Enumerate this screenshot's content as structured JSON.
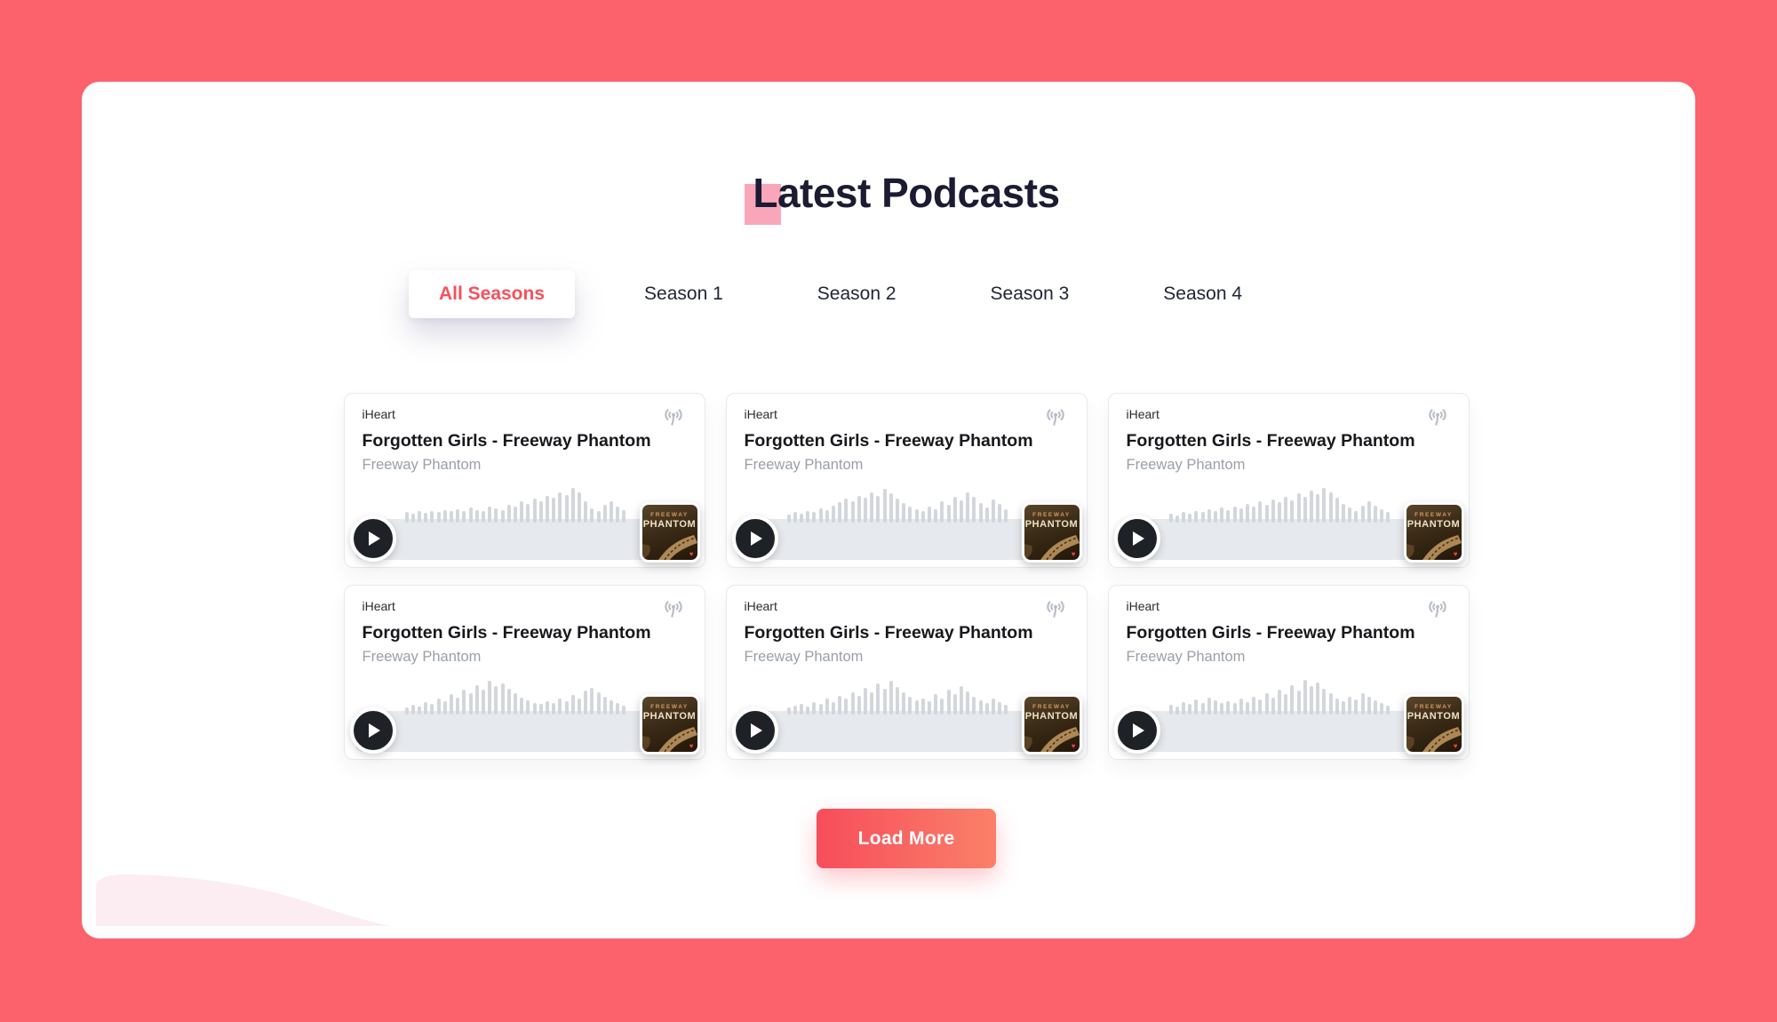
{
  "header": {
    "title": "Latest Podcasts"
  },
  "tabs": {
    "active_index": 0,
    "items": [
      {
        "label": "All Seasons"
      },
      {
        "label": "Season 1"
      },
      {
        "label": "Season 2"
      },
      {
        "label": "Season 3"
      },
      {
        "label": "Season 4"
      }
    ]
  },
  "cards": [
    {
      "network": "iHeart",
      "title": "Forgotten Girls - Freeway Phantom",
      "show": "Freeway Phantom",
      "art": {
        "line1": "FREEWAY",
        "line2": "PHANTOM"
      },
      "waveform": [
        28,
        24,
        30,
        26,
        32,
        28,
        34,
        30,
        36,
        32,
        40,
        34,
        30,
        44,
        38,
        34,
        48,
        42,
        56,
        50,
        64,
        58,
        72,
        66,
        82,
        74,
        92,
        80,
        56,
        38,
        32,
        48,
        56,
        44,
        34
      ]
    },
    {
      "network": "iHeart",
      "title": "Forgotten Girls - Freeway Phantom",
      "show": "Freeway Phantom",
      "art": {
        "line1": "FREEWAY",
        "line2": "PHANTOM"
      },
      "waveform": [
        22,
        28,
        24,
        32,
        28,
        38,
        34,
        46,
        54,
        64,
        58,
        72,
        66,
        80,
        72,
        90,
        78,
        64,
        52,
        42,
        36,
        30,
        42,
        36,
        56,
        48,
        70,
        60,
        80,
        68,
        52,
        40,
        62,
        50,
        36
      ]
    },
    {
      "network": "iHeart",
      "title": "Forgotten Girls - Freeway Phantom",
      "show": "Freeway Phantom",
      "art": {
        "line1": "FREEWAY",
        "line2": "PHANTOM"
      },
      "waveform": [
        24,
        20,
        28,
        24,
        32,
        28,
        36,
        30,
        40,
        34,
        44,
        38,
        50,
        42,
        56,
        48,
        62,
        54,
        70,
        60,
        78,
        68,
        86,
        76,
        92,
        80,
        66,
        50,
        40,
        32,
        46,
        56,
        46,
        36,
        28
      ]
    },
    {
      "network": "iHeart",
      "title": "Forgotten Girls - Freeway Phantom",
      "show": "Freeway Phantom",
      "art": {
        "line1": "FREEWAY",
        "line2": "PHANTOM"
      },
      "waveform": [
        20,
        26,
        22,
        34,
        28,
        42,
        36,
        54,
        46,
        66,
        56,
        78,
        66,
        90,
        76,
        84,
        68,
        56,
        46,
        38,
        32,
        28,
        36,
        30,
        44,
        36,
        52,
        44,
        64,
        72,
        60,
        48,
        38,
        30,
        24
      ]
    },
    {
      "network": "iHeart",
      "title": "Forgotten Girls - Freeway Phantom",
      "show": "Freeway Phantom",
      "art": {
        "line1": "FREEWAY",
        "line2": "PHANTOM"
      },
      "waveform": [
        18,
        24,
        28,
        22,
        34,
        28,
        42,
        34,
        50,
        42,
        60,
        50,
        72,
        60,
        84,
        70,
        90,
        74,
        60,
        48,
        38,
        44,
        36,
        54,
        44,
        66,
        54,
        76,
        62,
        48,
        38,
        30,
        42,
        34,
        26
      ]
    },
    {
      "network": "iHeart",
      "title": "Forgotten Girls - Freeway Phantom",
      "show": "Freeway Phantom",
      "art": {
        "line1": "FREEWAY",
        "line2": "PHANTOM"
      },
      "waveform": [
        26,
        22,
        34,
        28,
        40,
        32,
        46,
        38,
        30,
        36,
        30,
        42,
        34,
        48,
        40,
        56,
        46,
        66,
        54,
        78,
        64,
        92,
        76,
        86,
        70,
        56,
        44,
        36,
        48,
        40,
        58,
        48,
        38,
        30,
        24
      ]
    }
  ],
  "load_more": {
    "label": "Load More"
  },
  "colors": {
    "page_bg": "#FB626C",
    "panel_bg": "#FFFFFF",
    "heading": "#1B1B33",
    "accent_square": "#F9A6BB",
    "tab_text": "#1F2536",
    "tab_active_text": "#F4515C",
    "card_border": "#E6E9EC",
    "muted_text": "#9AA0A8",
    "player_band": "#E6E9ED",
    "wave_bar": "#D3D7DB",
    "play_bg": "#1E2126",
    "btn_grad_start": "#F74D5B",
    "btn_grad_end": "#FA8069",
    "wave_decoration": "#FBEDF1"
  }
}
